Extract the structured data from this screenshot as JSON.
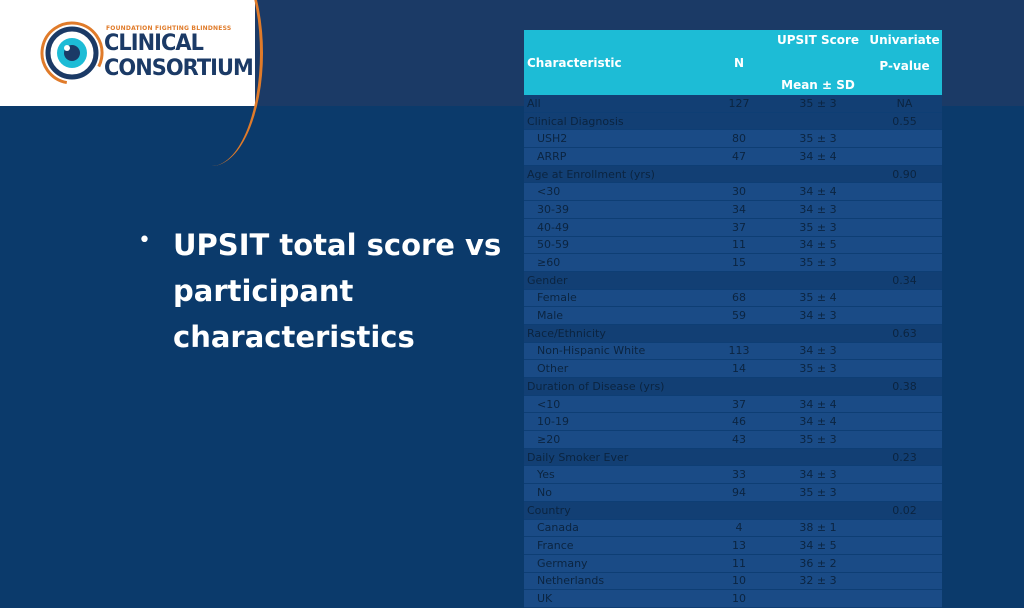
{
  "logo": {
    "tagline": "FOUNDATION FIGHTING BLINDNESS",
    "line1": "CLINICAL",
    "line2": "CONSORTIUM",
    "colors": {
      "navy": "#1b3a66",
      "orange": "#e07b2a",
      "eye": "#1dbcd6"
    }
  },
  "slide": {
    "bullet": "•",
    "headline": "UPSIT total score vs participant characteristics",
    "background": "#0b3a6b",
    "header_color": "#1dbcd6"
  },
  "table": {
    "headers": {
      "characteristic": "Characteristic",
      "n": "N",
      "score_top": "UPSIT Score",
      "score_bottom": "Mean ± SD",
      "pval_top": "Univariate",
      "pval_bottom": "P-value"
    },
    "rows": [
      {
        "kind": "group",
        "label": "All",
        "n": "127",
        "score": "35 ± 3",
        "p": "NA"
      },
      {
        "kind": "group",
        "label": "Clinical Diagnosis",
        "n": "",
        "score": "",
        "p": "0.55"
      },
      {
        "kind": "sub",
        "label": "USH2",
        "n": "80",
        "score": "35 ± 3",
        "p": ""
      },
      {
        "kind": "sub",
        "label": "ARRP",
        "n": "47",
        "score": "34 ± 4",
        "p": ""
      },
      {
        "kind": "group",
        "label": "Age at Enrollment (yrs)",
        "n": "",
        "score": "",
        "p": "0.90"
      },
      {
        "kind": "sub",
        "label": "<30",
        "n": "30",
        "score": "34 ± 4",
        "p": ""
      },
      {
        "kind": "sub",
        "label": "30-39",
        "n": "34",
        "score": "34 ± 3",
        "p": ""
      },
      {
        "kind": "sub",
        "label": "40-49",
        "n": "37",
        "score": "35 ± 3",
        "p": ""
      },
      {
        "kind": "sub",
        "label": "50-59",
        "n": "11",
        "score": "34 ± 5",
        "p": ""
      },
      {
        "kind": "sub",
        "label": "≥60",
        "n": "15",
        "score": "35 ± 3",
        "p": ""
      },
      {
        "kind": "group",
        "label": "Gender",
        "n": "",
        "score": "",
        "p": "0.34"
      },
      {
        "kind": "sub",
        "label": "Female",
        "n": "68",
        "score": "35 ± 4",
        "p": ""
      },
      {
        "kind": "sub",
        "label": "Male",
        "n": "59",
        "score": "34 ± 3",
        "p": ""
      },
      {
        "kind": "group",
        "label": "Race/Ethnicity",
        "n": "",
        "score": "",
        "p": "0.63"
      },
      {
        "kind": "sub",
        "label": "Non-Hispanic White",
        "n": "113",
        "score": "34 ± 3",
        "p": ""
      },
      {
        "kind": "sub",
        "label": "Other",
        "n": "14",
        "score": "35 ± 3",
        "p": ""
      },
      {
        "kind": "group",
        "label": "Duration of Disease (yrs)",
        "n": "",
        "score": "",
        "p": "0.38"
      },
      {
        "kind": "sub",
        "label": "<10",
        "n": "37",
        "score": "34 ± 4",
        "p": ""
      },
      {
        "kind": "sub",
        "label": "10-19",
        "n": "46",
        "score": "34 ± 4",
        "p": ""
      },
      {
        "kind": "sub",
        "label": "≥20",
        "n": "43",
        "score": "35 ± 3",
        "p": ""
      },
      {
        "kind": "group",
        "label": "Daily Smoker Ever",
        "n": "",
        "score": "",
        "p": "0.23"
      },
      {
        "kind": "sub",
        "label": "Yes",
        "n": "33",
        "score": "34 ± 3",
        "p": ""
      },
      {
        "kind": "sub",
        "label": "No",
        "n": "94",
        "score": "35 ± 3",
        "p": ""
      },
      {
        "kind": "group",
        "label": "Country",
        "n": "",
        "score": "",
        "p": "0.02"
      },
      {
        "kind": "sub",
        "label": "Canada",
        "n": "4",
        "score": "38 ± 1",
        "p": ""
      },
      {
        "kind": "sub",
        "label": "France",
        "n": "13",
        "score": "34 ± 5",
        "p": ""
      },
      {
        "kind": "sub",
        "label": "Germany",
        "n": "11",
        "score": "36 ± 2",
        "p": ""
      },
      {
        "kind": "sub",
        "label": "Netherlands",
        "n": "10",
        "score": "32 ± 3",
        "p": ""
      },
      {
        "kind": "sub",
        "label": "UK",
        "n": "10",
        "score": "",
        "p": ""
      }
    ]
  }
}
